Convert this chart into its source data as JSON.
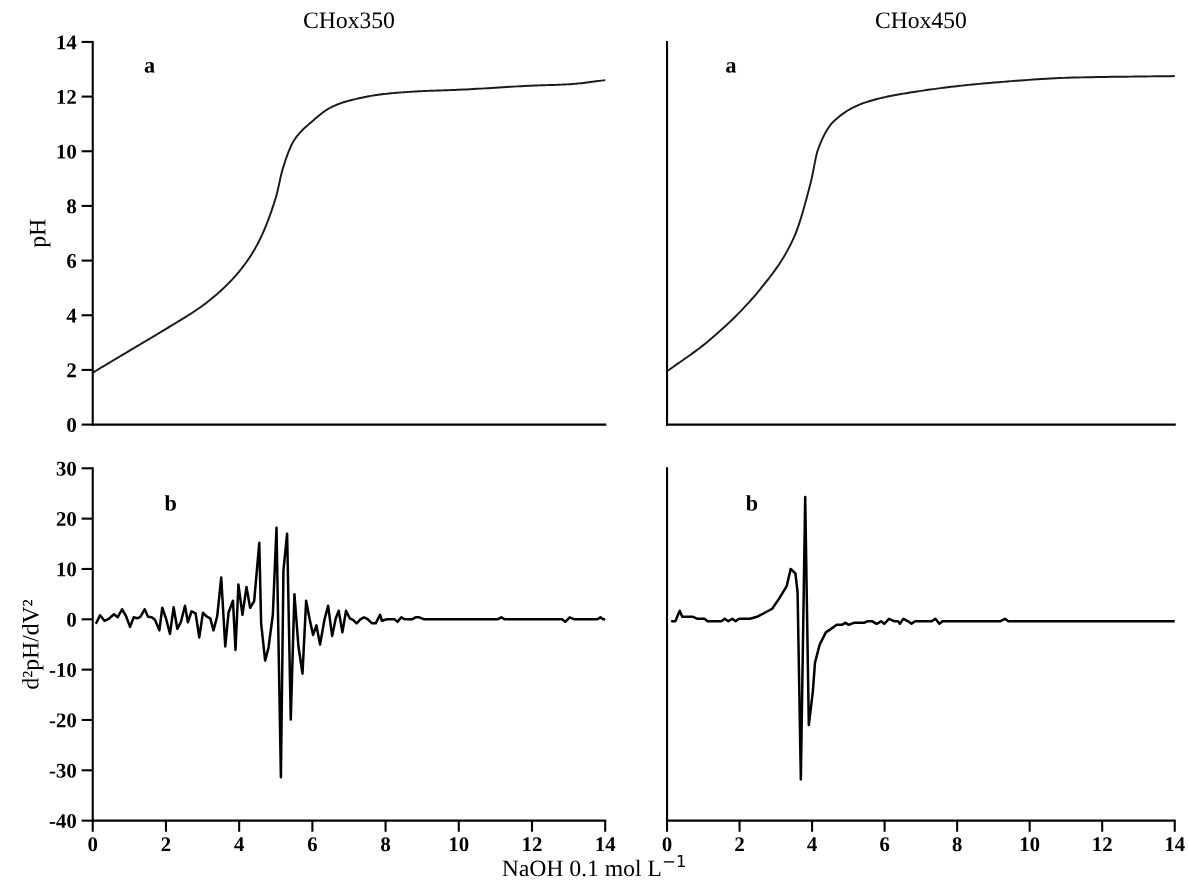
{
  "chart_data": [
    {
      "type": "line",
      "title": "CHox350",
      "ylabel": "pH",
      "annotations": [
        "a"
      ],
      "xlim": [
        0,
        14
      ],
      "xticks": [
        0,
        2,
        4,
        6,
        8,
        10,
        12,
        14
      ],
      "ylim": [
        0,
        14
      ],
      "yticks": [
        0,
        2,
        4,
        6,
        8,
        10,
        12,
        14
      ],
      "tick_labels": "y",
      "grid": false,
      "series": [
        {
          "color": "#1a1a1a",
          "x": [
            0,
            1,
            2,
            3,
            3.5,
            4,
            4.5,
            5,
            5.2,
            5.5,
            6,
            6.5,
            7,
            8,
            9,
            10,
            12,
            13,
            14
          ],
          "values": [
            1.9,
            2.7,
            3.5,
            4.35,
            4.9,
            5.6,
            6.6,
            8.3,
            9.4,
            10.4,
            11.1,
            11.6,
            11.85,
            12.1,
            12.2,
            12.25,
            12.4,
            12.45,
            12.6
          ]
        }
      ]
    },
    {
      "type": "line",
      "title": "CHox450",
      "annotations": [
        "a"
      ],
      "xlim": [
        0,
        14
      ],
      "xticks": [
        0,
        2,
        4,
        6,
        8,
        10,
        12,
        14
      ],
      "ylim": [
        0,
        14
      ],
      "yticks": [
        0,
        2,
        4,
        6,
        8,
        10,
        12,
        14
      ],
      "tick_labels": false,
      "grid": false,
      "series": [
        {
          "color": "#1a1a1a",
          "x": [
            0,
            1.18,
            2.72,
            3.5,
            3.97,
            4.16,
            4.6,
            5.5,
            6.96,
            8.9,
            11.3,
            14
          ],
          "values": [
            1.95,
            3.1,
            5.2,
            6.85,
            8.9,
            10.05,
            11.1,
            11.8,
            12.2,
            12.5,
            12.7,
            12.75
          ]
        }
      ]
    },
    {
      "type": "line",
      "ylabel": "d²pH/dV²",
      "annotations": [
        "b"
      ],
      "xlim": [
        0,
        14
      ],
      "xticks": [
        0,
        2,
        4,
        6,
        8,
        10,
        12,
        14
      ],
      "ylim": [
        -40,
        30
      ],
      "yticks": [
        -40,
        -30,
        -20,
        -10,
        0,
        10,
        20,
        30
      ],
      "grid": false,
      "series": [
        {
          "color": "#000000",
          "x": [
            0.1,
            0.2,
            0.32,
            0.44,
            0.58,
            0.68,
            0.8,
            0.9,
            1.02,
            1.12,
            1.22,
            1.3,
            1.42,
            1.51,
            1.61,
            1.7,
            1.82,
            1.9,
            2.0,
            2.11,
            2.21,
            2.31,
            2.41,
            2.52,
            2.6,
            2.7,
            2.81,
            2.91,
            3.01,
            3.11,
            3.21,
            3.3,
            3.4,
            3.51,
            3.62,
            3.71,
            3.83,
            3.9,
            3.98,
            4.09,
            4.2,
            4.3,
            4.41,
            4.55,
            4.6,
            4.71,
            4.8,
            4.92,
            5.02,
            5.14,
            5.21,
            5.31,
            5.41,
            5.51,
            5.62,
            5.73,
            5.83,
            5.92,
            6.02,
            6.11,
            6.21,
            6.33,
            6.43,
            6.54,
            6.64,
            6.72,
            6.82,
            6.92,
            7.02,
            7.11,
            7.21,
            7.31,
            7.41,
            7.5,
            7.63,
            7.73,
            7.85,
            7.9,
            8.04,
            8.24,
            8.33,
            8.43,
            8.53,
            8.72,
            8.82,
            8.92,
            9.06,
            11.06,
            11.16,
            11.26,
            12.82,
            12.91,
            13.03,
            13.16,
            13.79,
            13.87,
            13.94,
            14.0
          ],
          "values": [
            -0.7,
            0.8,
            -0.3,
            0.1,
            1.0,
            0.4,
            2.0,
            0.8,
            -1.5,
            0.4,
            0.2,
            0.5,
            2.0,
            0.5,
            0.4,
            -0.1,
            -2.2,
            2.3,
            0.2,
            -2.9,
            2.4,
            -1.9,
            -0.5,
            2.7,
            -0.6,
            1.6,
            1.2,
            -3.6,
            1.3,
            0.6,
            0.2,
            -2.2,
            0.6,
            8.3,
            -5.4,
            1.3,
            3.7,
            -6.1,
            6.9,
            0.9,
            6.4,
            2.3,
            3.6,
            15.2,
            -0.8,
            -8.2,
            -5.7,
            0.9,
            18.2,
            -31.4,
            9.7,
            17.0,
            -19.9,
            5.0,
            -5.4,
            -10.8,
            3.7,
            0.2,
            -3.1,
            -1.2,
            -5.0,
            -0.1,
            2.7,
            -3.3,
            0.2,
            1.7,
            -2.6,
            1.7,
            0.2,
            -0.1,
            -0.8,
            0,
            0.4,
            0.1,
            -0.8,
            -0.8,
            0.9,
            -0.3,
            0,
            0,
            -0.5,
            0.4,
            0,
            0,
            0.4,
            0.4,
            0,
            0,
            0.4,
            0,
            0,
            -0.5,
            0.4,
            0,
            0,
            0.4,
            0,
            0
          ]
        }
      ]
    },
    {
      "type": "line",
      "xlabel": "NaOH 0.1 mol L$^{−1}$",
      "annotations": [
        "b"
      ],
      "xlim": [
        0,
        14
      ],
      "xticks": [
        0,
        2,
        4,
        6,
        8,
        10,
        12,
        14
      ],
      "ylim": [
        -40,
        30
      ],
      "yticks": [
        -40,
        -30,
        -20,
        -10,
        0,
        10,
        20,
        30
      ],
      "tick_labels": "x",
      "grid": false,
      "series": [
        {
          "color": "#000000",
          "x": [
            0.14,
            0.23,
            0.35,
            0.42,
            0.72,
            0.84,
            1.03,
            1.12,
            1.5,
            1.59,
            1.69,
            1.8,
            1.89,
            1.98,
            2.29,
            2.48,
            2.67,
            2.9,
            3.09,
            3.3,
            3.41,
            3.54,
            3.6,
            3.69,
            3.81,
            3.91,
            4.02,
            4.08,
            4.21,
            4.38,
            4.54,
            4.68,
            4.82,
            4.92,
            5.01,
            5.15,
            5.43,
            5.52,
            5.66,
            5.78,
            5.9,
            5.99,
            6.12,
            6.27,
            6.37,
            6.42,
            6.52,
            6.65,
            6.74,
            6.84,
            7.3,
            7.4,
            7.51,
            7.6,
            9.18,
            9.32,
            9.41,
            14.0
          ],
          "values": [
            -0.4,
            -0.4,
            1.7,
            0.5,
            0.5,
            0.1,
            0.1,
            -0.4,
            -0.4,
            0.1,
            -0.4,
            0.1,
            -0.4,
            0.1,
            0.1,
            0.5,
            1.2,
            2.1,
            4.1,
            6.6,
            10.0,
            9.1,
            5.4,
            -31.8,
            24.3,
            -21.0,
            -14.4,
            -8.6,
            -5.0,
            -2.6,
            -1.8,
            -1.1,
            -1.1,
            -0.7,
            -1.1,
            -0.7,
            -0.7,
            -0.4,
            -0.4,
            -0.9,
            -0.4,
            -0.9,
            0.1,
            -0.4,
            -0.4,
            -0.9,
            0.1,
            -0.4,
            -0.9,
            -0.4,
            -0.4,
            0.1,
            -0.9,
            -0.4,
            -0.4,
            0.1,
            -0.4,
            -0.4
          ]
        }
      ]
    }
  ]
}
